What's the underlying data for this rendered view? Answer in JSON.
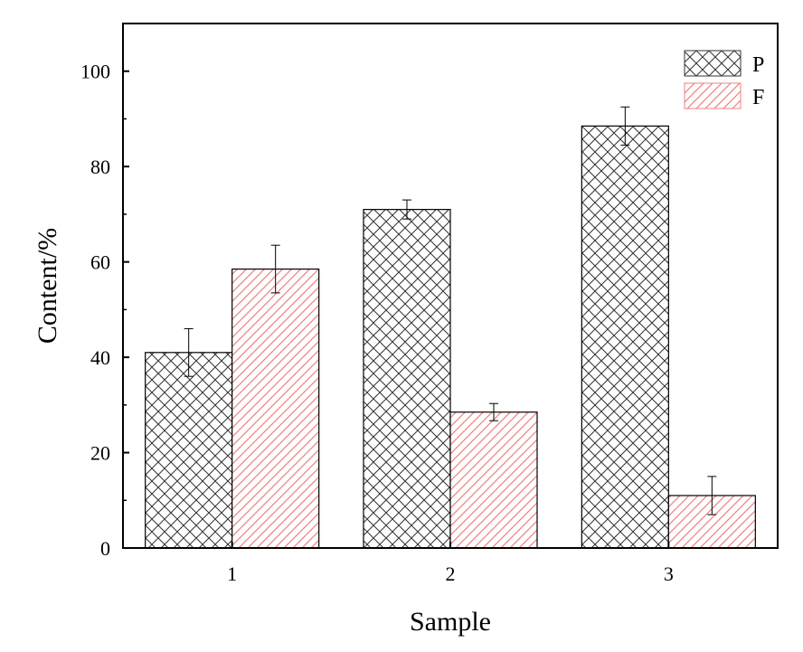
{
  "chart_data": {
    "type": "bar",
    "categories": [
      "1",
      "2",
      "3"
    ],
    "series": [
      {
        "name": "P",
        "values": [
          41,
          71,
          88.5
        ],
        "errors": [
          5,
          2,
          4
        ],
        "color": "#333333",
        "pattern": "crosshatch"
      },
      {
        "name": "F",
        "values": [
          58.5,
          28.5,
          11
        ],
        "errors": [
          5,
          1.8,
          4
        ],
        "color": "#f08080",
        "pattern": "diagonal"
      }
    ],
    "xlabel": "Sample",
    "ylabel": "Content/%",
    "ylim": [
      0,
      110
    ],
    "yticks": [
      0,
      20,
      40,
      60,
      80,
      100
    ],
    "legend_position": "top-right",
    "grid": false
  }
}
